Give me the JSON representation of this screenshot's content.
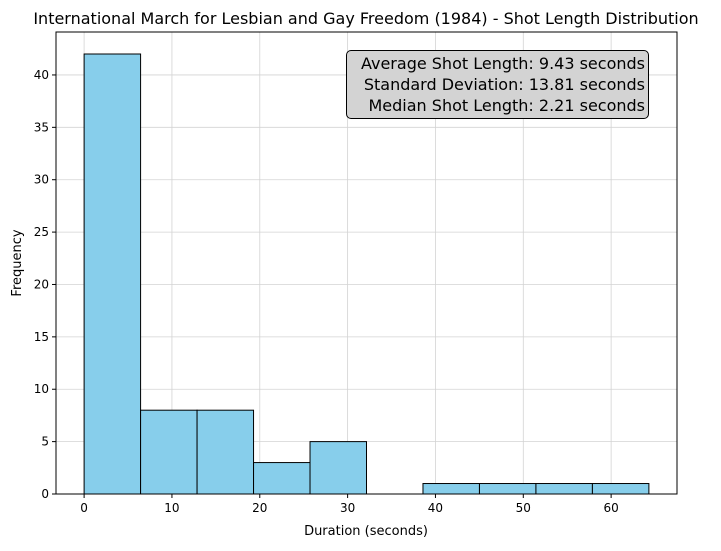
{
  "colors": {
    "bar_fill": "#87ceeb",
    "bar_stroke": "#000000",
    "grid": "#d3d3d3",
    "stats_box_bg": "#d3d3d3"
  },
  "stats_box": {
    "line1": "Average Shot Length: 9.43 seconds",
    "line2": "Standard Deviation: 13.81 seconds",
    "line3": "Median Shot Length: 2.21 seconds",
    "placement": "top-right"
  },
  "chart_data": {
    "type": "bar",
    "title": "International March for Lesbian and Gay Freedom (1984) - Shot Length Distribution",
    "xlabel": "Duration (seconds)",
    "ylabel": "Frequency",
    "bin_edges": [
      0.0,
      6.43,
      12.86,
      19.29,
      25.72,
      32.15,
      38.58,
      45.01,
      51.44,
      57.87,
      64.3
    ],
    "values": [
      42,
      8,
      8,
      3,
      5,
      0,
      1,
      1,
      1,
      1
    ],
    "xlim": [
      -3.2,
      67.5
    ],
    "ylim": [
      0,
      44.1
    ],
    "xticks": [
      0,
      10,
      20,
      30,
      40,
      50,
      60
    ],
    "yticks": [
      0,
      5,
      10,
      15,
      20,
      25,
      30,
      35,
      40
    ],
    "grid": true
  }
}
